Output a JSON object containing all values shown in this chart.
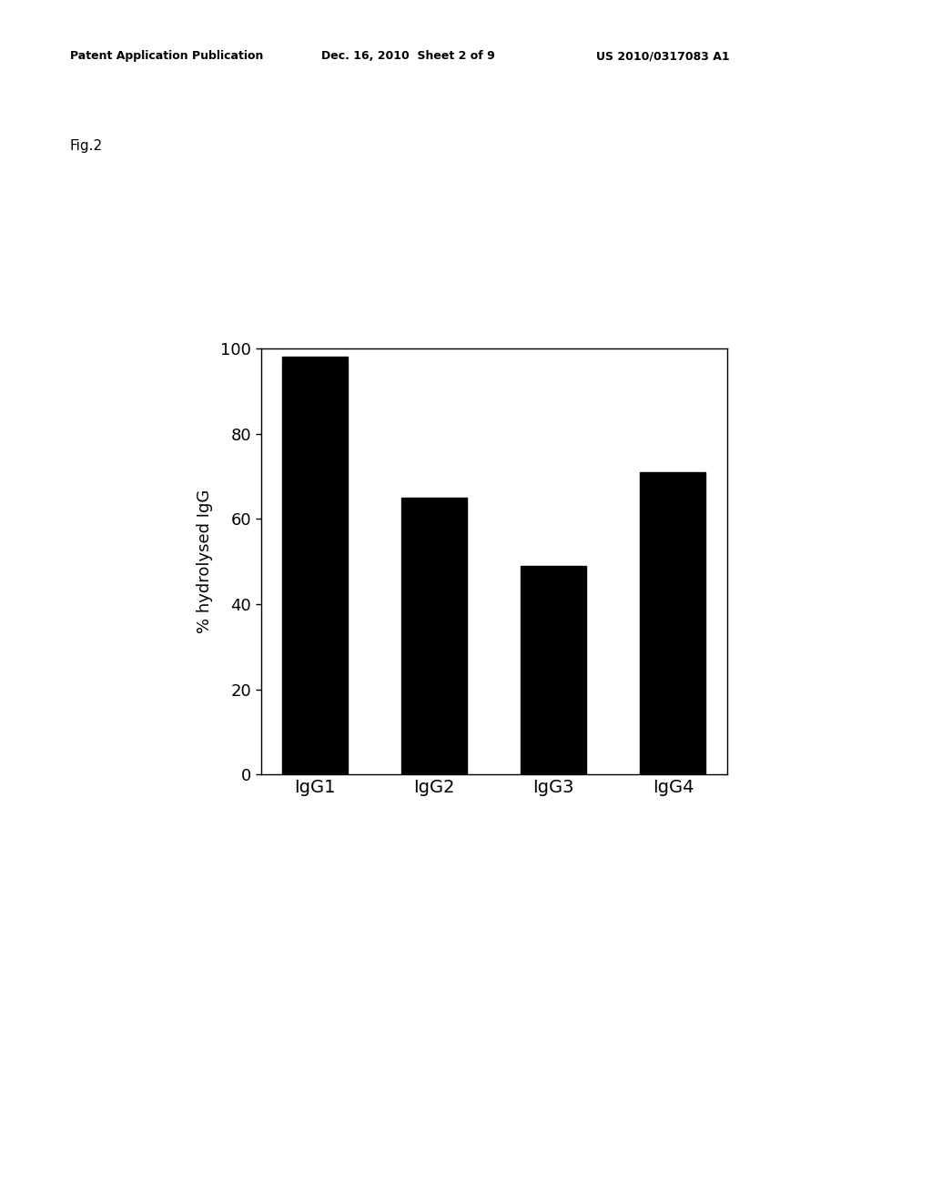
{
  "categories": [
    "IgG1",
    "IgG2",
    "IgG3",
    "IgG4"
  ],
  "values": [
    98,
    65,
    49,
    71
  ],
  "bar_color": "#000000",
  "ylabel": "% hydrolysed IgG",
  "ylim": [
    0,
    100
  ],
  "yticks": [
    0,
    20,
    40,
    60,
    80,
    100
  ],
  "background_color": "#ffffff",
  "fig_label": "Fig.2",
  "header_left": "Patent Application Publication",
  "header_mid": "Dec. 16, 2010  Sheet 2 of 9",
  "header_right": "US 2010/0317083 A1",
  "bar_width": 0.55,
  "ylabel_fontsize": 13,
  "tick_fontsize": 13,
  "xlabel_fontsize": 14,
  "header_fontsize": 9,
  "figlabel_fontsize": 11
}
